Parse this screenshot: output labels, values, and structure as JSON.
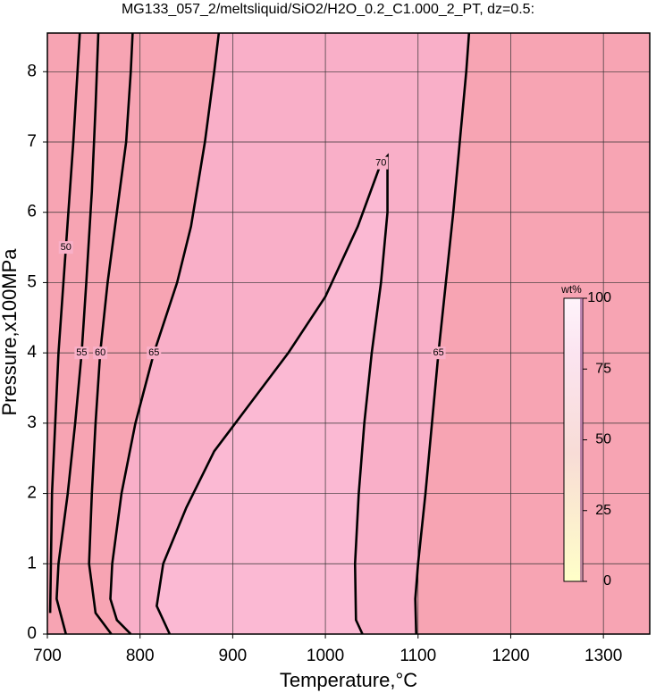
{
  "chart_data": {
    "type": "contour",
    "title": "MG133_057_2/meltsliquid/SiO2/H2O_0.2_C1.000_2_PT, dz=0.5:",
    "x_label": "Temperature,°C",
    "y_label": "Pressure,x100MPa",
    "xlim": [
      700,
      1350
    ],
    "ylim": [
      0,
      8.55
    ],
    "xticks": [
      700,
      800,
      900,
      1000,
      1100,
      1200,
      1300
    ],
    "yticks": [
      0,
      1,
      2,
      3,
      4,
      5,
      6,
      7,
      8
    ],
    "grid": true,
    "series": [
      {
        "level": 50,
        "x": [
          703,
          705,
          712,
          720,
          728,
          735
        ],
        "y": [
          0.3,
          2,
          4,
          5.5,
          7,
          8.55
        ]
      },
      {
        "level": 55,
        "x": [
          720,
          710,
          712,
          722,
          730,
          737,
          742,
          748,
          752,
          755
        ],
        "y": [
          0,
          0.5,
          1,
          2,
          3,
          4,
          5,
          6.3,
          7.5,
          8.55
        ]
      },
      {
        "level": 60,
        "x": [
          769,
          752,
          745,
          748,
          752,
          757,
          765,
          775,
          785,
          790,
          792
        ],
        "y": [
          0,
          0.3,
          1,
          2,
          3,
          4,
          5,
          6,
          7,
          8,
          8.55
        ]
      },
      {
        "level": 65,
        "x": [
          790,
          775,
          768,
          770,
          780,
          795,
          815,
          840,
          855,
          870,
          880,
          885
        ],
        "y": [
          0,
          0.2,
          0.5,
          1,
          2,
          3,
          4,
          5,
          5.8,
          7,
          8,
          8.55
        ]
      },
      {
        "level": 70,
        "x": [
          832,
          818,
          825,
          850,
          880,
          920,
          960,
          1000,
          1035,
          1060,
          1067,
          1067,
          1060,
          1050,
          1042,
          1036,
          1032,
          1033,
          1040
        ],
        "y": [
          0,
          0.4,
          1,
          1.8,
          2.6,
          3.3,
          4.0,
          4.8,
          5.8,
          6.7,
          6.8,
          6.0,
          5.0,
          4.0,
          3.0,
          2.0,
          1.0,
          0.2,
          0
        ]
      },
      {
        "level": 65,
        "x": [
          1098,
          1097,
          1100,
          1108,
          1115,
          1122,
          1130,
          1138,
          1145,
          1152,
          1155
        ],
        "y": [
          0,
          0.5,
          1,
          2,
          3,
          4,
          5,
          6,
          7,
          8,
          8.55
        ]
      }
    ],
    "colorbar": {
      "label": "wt%",
      "clim": [
        0,
        100
      ],
      "ticks": [
        0,
        25,
        50,
        75,
        100
      ]
    }
  }
}
